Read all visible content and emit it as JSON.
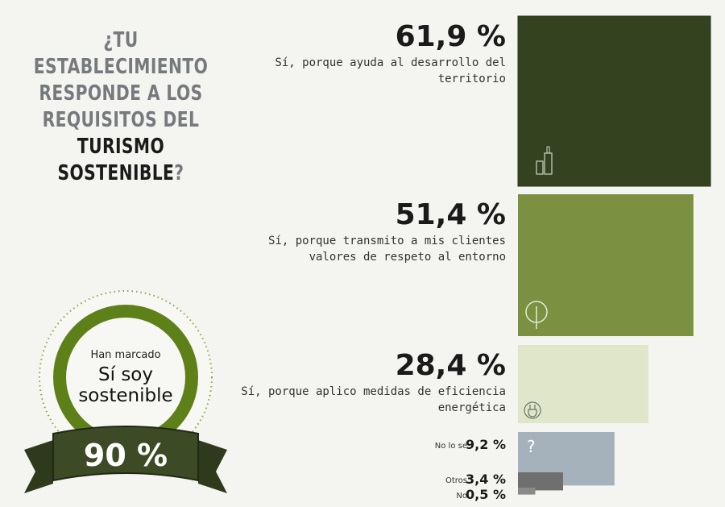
{
  "title": {
    "line1": "¿TU ESTABLECIMIENTO",
    "line2": "RESPONDE A LOS",
    "line3": "REQUISITOS DEL",
    "line4_bold": "TURISMO SOSTENIBLE",
    "line4_end": "?"
  },
  "badge": {
    "top_text": "Han marcado",
    "line1": "Sí soy",
    "line2": "sostenible",
    "value": "90 %"
  },
  "colors": {
    "dark_green": "#344220",
    "mid_green": "#7b9141",
    "light_green": "#dfe6ca",
    "grey_blue": "#a5b2bc",
    "ring_green": "#5d8019"
  },
  "chart_data": {
    "type": "bar",
    "categories": [
      "Sí, porque ayuda al desarrollo del territorio",
      "Sí, porque transmito a mis clientes valores de respeto al entorno",
      "Sí, porque aplico medidas de eficiencia energética",
      "No lo se",
      "Otros",
      "No"
    ],
    "values": [
      61.9,
      51.4,
      28.4,
      9.2,
      3.4,
      0.5
    ],
    "labels": [
      "61,9 %",
      "51,4 %",
      "28,4 %",
      "9,2 %",
      "3,4 %",
      "0,5 %"
    ],
    "desc_lines": [
      [
        "Sí, porque ayuda al desarrollo del",
        "territorio"
      ],
      [
        "Sí, porque transmito a mis clientes",
        "valores de respeto al entorno"
      ],
      [
        "Sí, porque aplico medidas de eficiencia",
        "energética"
      ],
      [
        "No lo se"
      ],
      [
        "Otros"
      ],
      [
        "No"
      ]
    ],
    "colors": [
      "#344220",
      "#7b9141",
      "#dfe6ca",
      "#a5b2bc",
      "#6f6f6f",
      "#8a8a8a"
    ],
    "icons": [
      "bottles-icon",
      "leaf-tree-icon",
      "plug-icon",
      "question-icon",
      "",
      ""
    ],
    "unit": "%"
  }
}
